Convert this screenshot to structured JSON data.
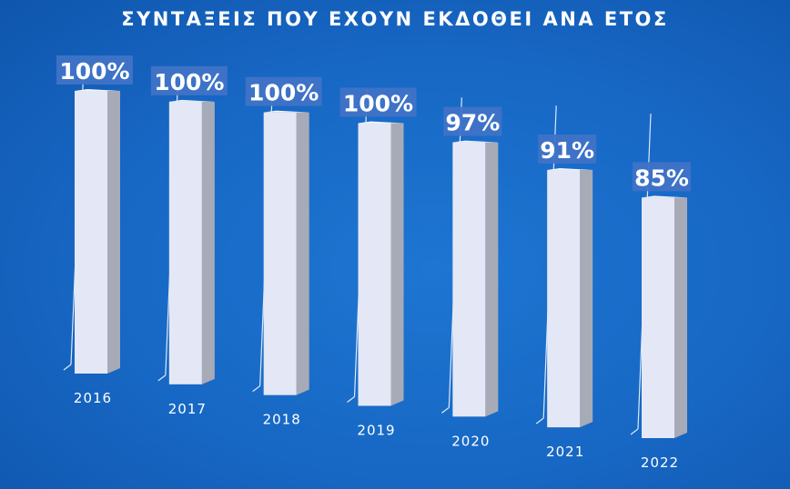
{
  "chart_data": {
    "type": "bar",
    "title": "ΣΥΝΤΑΞΕΙΣ ΠΟΥ ΕΧΟΥΝ ΕΚΔΟΘΕΙ ΑΝΑ ΕΤΟΣ",
    "categories": [
      "2016",
      "2017",
      "2018",
      "2019",
      "2020",
      "2021",
      "2022"
    ],
    "values": [
      100,
      100,
      100,
      100,
      97,
      91,
      85
    ],
    "value_labels": [
      "100%",
      "100%",
      "100%",
      "100%",
      "97%",
      "91%",
      "85%"
    ],
    "ylim": [
      0,
      100
    ],
    "grid": false,
    "legend": "none",
    "style": "3d-columns"
  },
  "colors": {
    "background": "#1767c4",
    "bar_front": "#e4e8f6",
    "bar_side": "#a7abb7",
    "label_box": "#3f73c7",
    "text": "#ffffff",
    "divider": "#ffffff"
  }
}
